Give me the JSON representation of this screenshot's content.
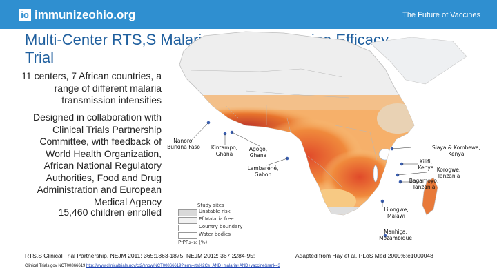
{
  "header": {
    "logo_mark": "io",
    "logo_text": "immunizeohio.org",
    "right_text": "The Future of Vaccines",
    "bar_color": "#2f8fd0"
  },
  "slide": {
    "title": "Multi-Center RTS,S Malaria Phase III Vaccine Efficacy Trial",
    "bullets": [
      "11 centers, 7 African countries, a range of different malaria transmission intensities",
      "Designed in collaboration with Clinical Trials Partnership Committee, with feedback of World Health Organization, African National Regulatory Authorities, Food and Drug Administration and European Medical Agency",
      "15,460 children enrolled"
    ]
  },
  "map": {
    "site_labels": [
      "Nanoro, Burkina Faso",
      "Kintampo, Ghana",
      "Agogo, Ghana",
      "Lambaréné, Gabon",
      "Siaya & Kombewa, Kenya",
      "Kilifi, Kenya",
      "Korogwe, Tanzania",
      "Bagamoyo, Tanzania",
      "Lilongwe, Malawi",
      "Manhiça, Mozambique"
    ],
    "legend": {
      "title": "Study sites",
      "items": [
        {
          "label": "Unstable risk",
          "color": "#d9d9d9"
        },
        {
          "label": "Pf Malaria free",
          "color": "#f2f2f2"
        },
        {
          "label": "Country boundary",
          "color": "#ffffff"
        },
        {
          "label": "Water bodies",
          "color": "#ffffff"
        }
      ],
      "scale_label": "PfPR₂₋₁₀ (%)"
    }
  },
  "citations": {
    "left": "RTS,S Clinical Trial Partnership, NEJM 2011; 365:1863-1875; NEJM 2012; 367:2284-95;",
    "right": "Adapted from Hay et al, PLoS Med 2009;6:e1000048",
    "clinical_prefix": "Clinical Trials.gov NCT00866619",
    "clinical_link": "http://www.clinicaltrials.gov/ct2/show/NCT00866619?term=rts%2Cs+AND+malaria+AND+vaccine&rank=3"
  }
}
